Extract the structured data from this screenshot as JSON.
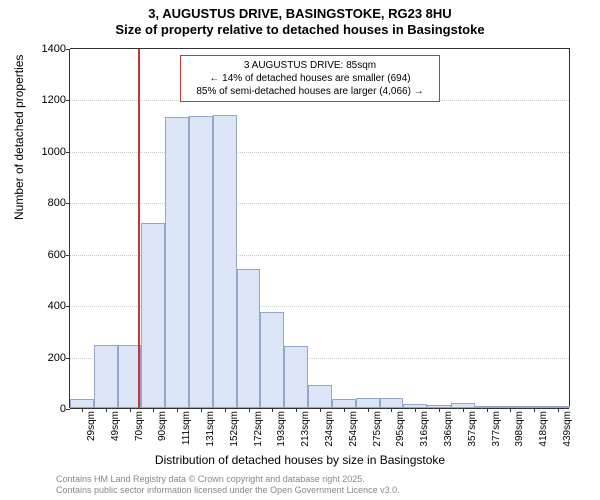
{
  "title_main": "3, AUGUSTUS DRIVE, BASINGSTOKE, RG23 8HU",
  "title_sub": "Size of property relative to detached houses in Basingstoke",
  "chart": {
    "type": "histogram",
    "ylabel": "Number of detached properties",
    "xlabel": "Distribution of detached houses by size in Basingstoke",
    "ylim": [
      0,
      1400
    ],
    "ytick_step": 200,
    "yticks": [
      0,
      200,
      400,
      600,
      800,
      1000,
      1200,
      1400
    ],
    "bar_color": "#dbe5f6",
    "bar_border": "#94a6c9",
    "grid_color": "#cccccc",
    "vline_color": "#cc3333",
    "vline_x_index": 2.85,
    "background_color": "#ffffff",
    "categories": [
      "29sqm",
      "49sqm",
      "70sqm",
      "90sqm",
      "111sqm",
      "131sqm",
      "152sqm",
      "172sqm",
      "193sqm",
      "213sqm",
      "234sqm",
      "254sqm",
      "275sqm",
      "295sqm",
      "316sqm",
      "336sqm",
      "357sqm",
      "377sqm",
      "398sqm",
      "418sqm",
      "439sqm"
    ],
    "values": [
      35,
      245,
      245,
      720,
      1130,
      1135,
      1140,
      540,
      375,
      240,
      90,
      35,
      40,
      40,
      15,
      10,
      20,
      0,
      2,
      0,
      2
    ]
  },
  "annotation": {
    "line1": "3 AUGUSTUS DRIVE: 85sqm",
    "line2": "← 14% of detached houses are smaller (694)",
    "line3": "85% of semi-detached houses are larger (4,066) →",
    "border_color": "#cc3333"
  },
  "footer": {
    "line1": "Contains HM Land Registry data © Crown copyright and database right 2025.",
    "line2": "Contains public sector information licensed under the Open Government Licence v3.0."
  }
}
